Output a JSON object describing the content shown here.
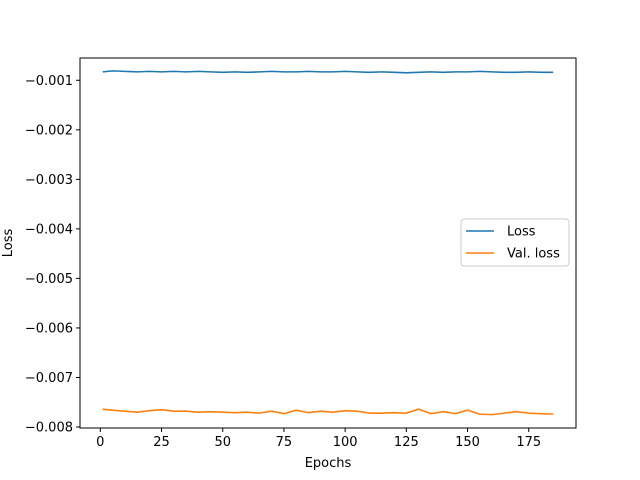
{
  "chart_data": {
    "type": "line",
    "title": "",
    "xlabel": "Epochs",
    "ylabel": "Loss",
    "xlim": [
      -8.3,
      194.3
    ],
    "ylim": [
      -0.00802,
      -0.00055
    ],
    "xticks": [
      0,
      25,
      50,
      75,
      100,
      125,
      150,
      175
    ],
    "xtick_labels": [
      "0",
      "25",
      "50",
      "75",
      "100",
      "125",
      "150",
      "175"
    ],
    "yticks": [
      -0.008,
      -0.007,
      -0.006,
      -0.005,
      -0.004,
      -0.003,
      -0.002,
      -0.001
    ],
    "ytick_labels": [
      "−0.008",
      "−0.007",
      "−0.006",
      "−0.005",
      "−0.004",
      "−0.003",
      "−0.002",
      "−0.001"
    ],
    "grid": false,
    "legend_position": "center-right",
    "series": [
      {
        "name": "Loss",
        "color": "#1f77b4",
        "x": [
          1,
          5,
          10,
          15,
          20,
          25,
          30,
          35,
          40,
          45,
          50,
          55,
          60,
          65,
          70,
          75,
          80,
          85,
          90,
          95,
          100,
          105,
          110,
          115,
          120,
          125,
          130,
          135,
          140,
          145,
          150,
          155,
          160,
          165,
          170,
          175,
          180,
          185
        ],
        "values": [
          -0.00083,
          -0.00081,
          -0.00082,
          -0.00083,
          -0.00082,
          -0.00083,
          -0.00082,
          -0.00083,
          -0.00082,
          -0.00083,
          -0.00084,
          -0.00083,
          -0.00084,
          -0.00083,
          -0.00082,
          -0.00083,
          -0.00083,
          -0.00082,
          -0.00083,
          -0.00083,
          -0.00082,
          -0.00083,
          -0.00084,
          -0.00083,
          -0.00084,
          -0.00085,
          -0.00084,
          -0.00083,
          -0.00084,
          -0.00083,
          -0.00083,
          -0.00082,
          -0.00083,
          -0.00084,
          -0.00084,
          -0.00083,
          -0.00084,
          -0.00084
        ]
      },
      {
        "name": "Val. loss",
        "color": "#ff7f0e",
        "x": [
          1,
          5,
          10,
          15,
          20,
          25,
          30,
          35,
          40,
          45,
          50,
          55,
          60,
          65,
          70,
          75,
          80,
          85,
          90,
          95,
          100,
          105,
          110,
          115,
          120,
          125,
          130,
          135,
          140,
          145,
          150,
          155,
          160,
          165,
          170,
          175,
          180,
          185
        ],
        "values": [
          -0.00764,
          -0.00766,
          -0.00768,
          -0.0077,
          -0.00767,
          -0.00765,
          -0.00768,
          -0.00768,
          -0.0077,
          -0.00769,
          -0.0077,
          -0.00771,
          -0.0077,
          -0.00772,
          -0.00768,
          -0.00773,
          -0.00766,
          -0.00771,
          -0.00768,
          -0.0077,
          -0.00767,
          -0.00768,
          -0.00772,
          -0.00772,
          -0.00771,
          -0.00772,
          -0.00764,
          -0.00773,
          -0.00769,
          -0.00773,
          -0.00766,
          -0.00774,
          -0.00775,
          -0.00772,
          -0.00769,
          -0.00772,
          -0.00773,
          -0.00774
        ]
      }
    ]
  }
}
